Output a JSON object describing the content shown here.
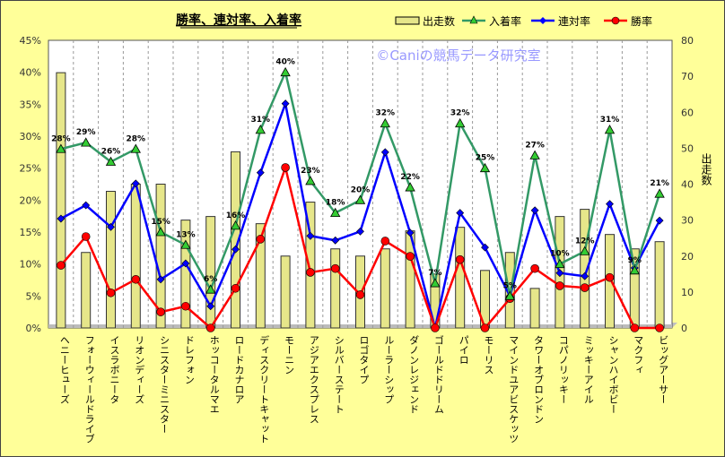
{
  "chart_data": {
    "type": "bar+line",
    "title": "勝率、連対率、入着率",
    "watermark": "©Caniの競馬データ研究室",
    "ylabel_right": "出走数",
    "ylim_left": [
      0,
      45
    ],
    "yticks_left": [
      "0%",
      "5%",
      "10%",
      "15%",
      "20%",
      "25%",
      "30%",
      "35%",
      "40%",
      "45%"
    ],
    "ylim_right": [
      0,
      80
    ],
    "yticks_right": [
      "0",
      "10",
      "20",
      "30",
      "40",
      "50",
      "60",
      "70",
      "80"
    ],
    "legend": [
      "出走数",
      "入着率",
      "連対率",
      "勝率"
    ],
    "legend_position": "top-right",
    "colors": {
      "bar": "#E6E68A",
      "入着率": "#339966",
      "連対率": "#0000FF",
      "勝率": "#FF0000",
      "marker_tri": "#33CC33"
    },
    "categories": [
      "ヘニーヒューズ",
      "フォーウィールドライブ",
      "イスラボニータ",
      "リオンディーズ",
      "シニスターミニスター",
      "ドレフォン",
      "ホッコータルマエ",
      "ロードカナロア",
      "ディスクリートキャット",
      "モーニン",
      "アジアエクスプレス",
      "シルバーステート",
      "ロゴタイプ",
      "ルーラーシップ",
      "ダノンレジェンド",
      "ゴールドドリーム",
      "パイロ",
      "モーリス",
      "マインドユアビスケッツ",
      "タワーオブロンドン",
      "コパノリッキー",
      "ミッキーアイル",
      "シャンハイボビー",
      "マクフィ",
      "ビッグアーサー"
    ],
    "series": [
      {
        "name": "出走数",
        "axis": "right",
        "values": [
          71,
          21,
          38,
          40,
          40,
          30,
          31,
          49,
          29,
          20,
          35,
          22,
          20,
          22,
          27,
          15,
          28,
          16,
          21,
          11,
          31,
          33,
          26,
          22,
          24
        ]
      },
      {
        "name": "入着率",
        "axis": "left",
        "values": [
          28,
          29,
          26,
          28,
          15,
          13,
          6,
          16,
          31,
          40,
          23,
          18,
          20,
          32,
          22,
          7,
          32,
          25,
          5,
          27,
          10,
          12,
          31,
          9,
          21
        ],
        "labels": [
          "28%",
          "29%",
          "26%",
          "28%",
          "15%",
          "13%",
          "6%",
          "16%",
          "31%",
          "40%",
          "23%",
          "18%",
          "20%",
          "32%",
          "22%",
          "7%",
          "32%",
          "25%",
          "5%",
          "27%",
          "10%",
          "12%",
          "31%",
          "9%",
          "21%"
        ]
      },
      {
        "name": "連対率",
        "axis": "left",
        "values": [
          17.1,
          19.2,
          15.8,
          22.6,
          7.6,
          10.1,
          3.4,
          12.3,
          24.3,
          35.1,
          14.4,
          13.7,
          15.1,
          27.5,
          14.9,
          0,
          18.0,
          12.6,
          5.0,
          18.4,
          8.6,
          8.1,
          19.4,
          9.4,
          16.8
        ]
      },
      {
        "name": "勝率",
        "axis": "left",
        "values": [
          9.8,
          14.3,
          5.5,
          7.6,
          2.5,
          3.4,
          0,
          6.2,
          13.9,
          25.1,
          8.7,
          9.3,
          5.2,
          13.6,
          11.2,
          0,
          10.7,
          0,
          4.6,
          9.3,
          6.6,
          6.3,
          7.9,
          0,
          0
        ]
      }
    ]
  }
}
